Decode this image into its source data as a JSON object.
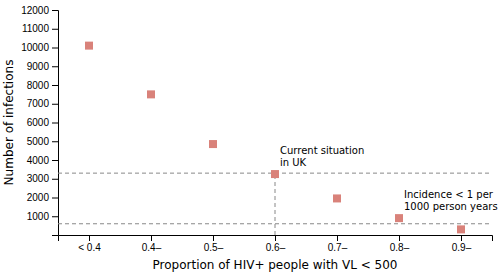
{
  "chart_data": {
    "type": "scatter",
    "x_label": "Proportion of HIV+ people with VL < 500",
    "y_label": "Number of infections",
    "categories": [
      "< 0.4",
      "0.4–",
      "0.5–",
      "0.6–",
      "0.7–",
      "0.8–",
      "0.9–"
    ],
    "values": [
      10100,
      7500,
      4850,
      3250,
      1950,
      900,
      300
    ],
    "color": "#d9827a",
    "marker": "square",
    "ylim": [
      0,
      12000
    ],
    "yticks": [
      1000,
      2000,
      3000,
      4000,
      5000,
      6000,
      7000,
      8000,
      9000,
      10000,
      11000,
      12000
    ],
    "grid": false,
    "hlines": {
      "values": [
        3300,
        600
      ],
      "color": "#888888",
      "line_style": "dashed"
    },
    "vline": {
      "category": "0.6–",
      "from": 0,
      "to": 3250,
      "color": "#888888",
      "line_style": "dashed"
    },
    "annotations": [
      "Current situation\nin UK",
      "Incidence < 1 per\n1000 person years"
    ]
  }
}
